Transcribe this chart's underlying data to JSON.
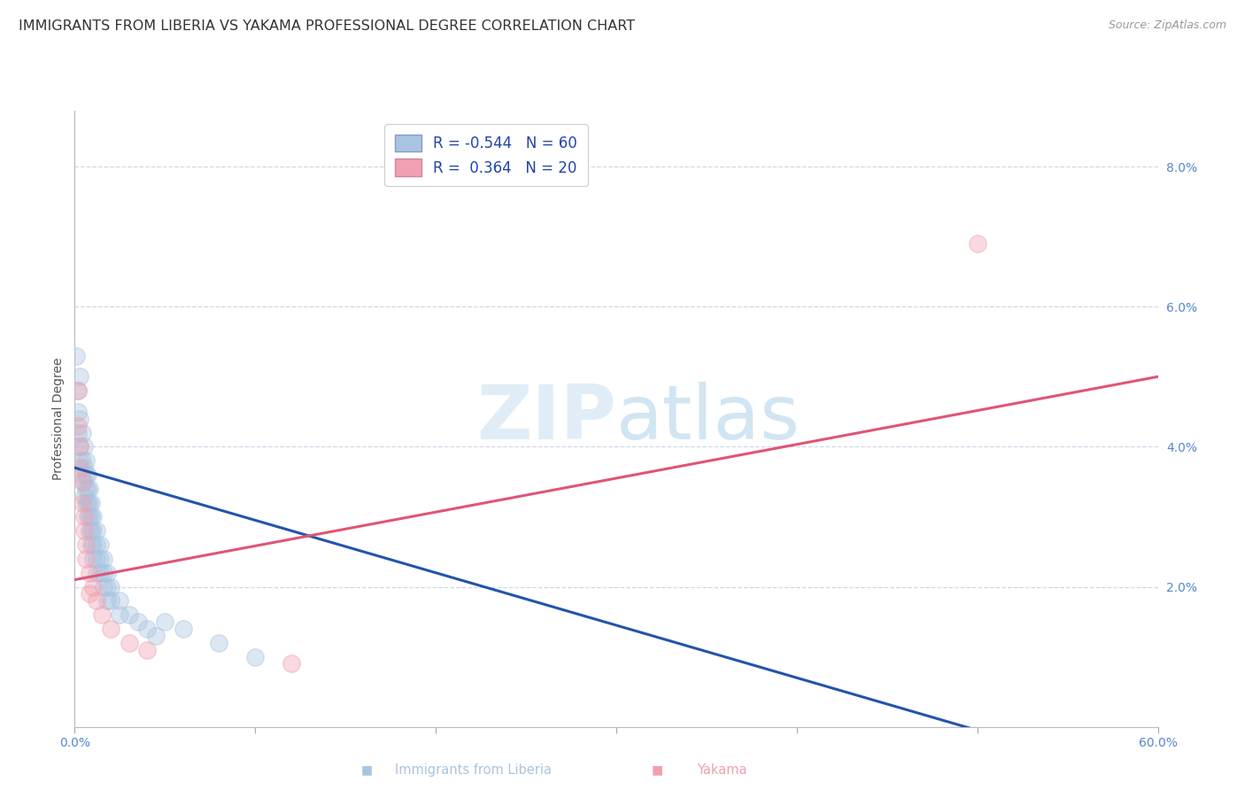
{
  "title": "IMMIGRANTS FROM LIBERIA VS YAKAMA PROFESSIONAL DEGREE CORRELATION CHART",
  "source": "Source: ZipAtlas.com",
  "xlabel_blue": "Immigrants from Liberia",
  "xlabel_pink": "Yakama",
  "ylabel": "Professional Degree",
  "xlim": [
    0.0,
    0.6
  ],
  "ylim": [
    0.0,
    0.088
  ],
  "xticks": [
    0.0,
    0.1,
    0.2,
    0.3,
    0.4,
    0.5,
    0.6
  ],
  "xticklabels": [
    "0.0%",
    "",
    "",
    "",
    "",
    "",
    "60.0%"
  ],
  "yticks": [
    0.0,
    0.02,
    0.04,
    0.06,
    0.08
  ],
  "yticklabels": [
    "",
    "2.0%",
    "4.0%",
    "6.0%",
    "8.0%"
  ],
  "legend_blue_r": "-0.544",
  "legend_blue_n": "60",
  "legend_pink_r": "0.364",
  "legend_pink_n": "20",
  "blue_color": "#a8c4e0",
  "pink_color": "#f0a0b0",
  "blue_line_color": "#2255aa",
  "pink_line_color": "#e05575",
  "blue_scatter": [
    [
      0.001,
      0.053
    ],
    [
      0.002,
      0.048
    ],
    [
      0.002,
      0.045
    ],
    [
      0.002,
      0.042
    ],
    [
      0.003,
      0.05
    ],
    [
      0.003,
      0.044
    ],
    [
      0.003,
      0.04
    ],
    [
      0.003,
      0.038
    ],
    [
      0.004,
      0.042
    ],
    [
      0.004,
      0.038
    ],
    [
      0.004,
      0.036
    ],
    [
      0.005,
      0.04
    ],
    [
      0.005,
      0.037
    ],
    [
      0.005,
      0.035
    ],
    [
      0.005,
      0.033
    ],
    [
      0.006,
      0.038
    ],
    [
      0.006,
      0.036
    ],
    [
      0.006,
      0.034
    ],
    [
      0.006,
      0.032
    ],
    [
      0.007,
      0.036
    ],
    [
      0.007,
      0.034
    ],
    [
      0.007,
      0.032
    ],
    [
      0.007,
      0.03
    ],
    [
      0.008,
      0.034
    ],
    [
      0.008,
      0.032
    ],
    [
      0.008,
      0.03
    ],
    [
      0.008,
      0.028
    ],
    [
      0.009,
      0.032
    ],
    [
      0.009,
      0.03
    ],
    [
      0.009,
      0.028
    ],
    [
      0.009,
      0.026
    ],
    [
      0.01,
      0.03
    ],
    [
      0.01,
      0.028
    ],
    [
      0.01,
      0.026
    ],
    [
      0.01,
      0.024
    ],
    [
      0.012,
      0.028
    ],
    [
      0.012,
      0.026
    ],
    [
      0.012,
      0.024
    ],
    [
      0.012,
      0.022
    ],
    [
      0.014,
      0.026
    ],
    [
      0.014,
      0.024
    ],
    [
      0.014,
      0.022
    ],
    [
      0.016,
      0.024
    ],
    [
      0.016,
      0.022
    ],
    [
      0.016,
      0.02
    ],
    [
      0.018,
      0.022
    ],
    [
      0.018,
      0.02
    ],
    [
      0.018,
      0.018
    ],
    [
      0.02,
      0.02
    ],
    [
      0.02,
      0.018
    ],
    [
      0.025,
      0.018
    ],
    [
      0.025,
      0.016
    ],
    [
      0.03,
      0.016
    ],
    [
      0.035,
      0.015
    ],
    [
      0.04,
      0.014
    ],
    [
      0.045,
      0.013
    ],
    [
      0.05,
      0.015
    ],
    [
      0.06,
      0.014
    ],
    [
      0.08,
      0.012
    ],
    [
      0.1,
      0.01
    ]
  ],
  "pink_scatter": [
    [
      0.002,
      0.048
    ],
    [
      0.002,
      0.043
    ],
    [
      0.003,
      0.04
    ],
    [
      0.003,
      0.037
    ],
    [
      0.004,
      0.035
    ],
    [
      0.004,
      0.032
    ],
    [
      0.005,
      0.03
    ],
    [
      0.005,
      0.028
    ],
    [
      0.006,
      0.026
    ],
    [
      0.006,
      0.024
    ],
    [
      0.008,
      0.022
    ],
    [
      0.008,
      0.019
    ],
    [
      0.01,
      0.02
    ],
    [
      0.012,
      0.018
    ],
    [
      0.015,
      0.016
    ],
    [
      0.02,
      0.014
    ],
    [
      0.03,
      0.012
    ],
    [
      0.04,
      0.011
    ],
    [
      0.12,
      0.009
    ],
    [
      0.5,
      0.069
    ]
  ],
  "blue_line_x": [
    0.0,
    0.6
  ],
  "blue_line_y": [
    0.037,
    -0.008
  ],
  "pink_line_x": [
    0.0,
    0.6
  ],
  "pink_line_y": [
    0.021,
    0.05
  ],
  "background_color": "#ffffff",
  "grid_color": "#d0d8e8",
  "tick_color": "#5588cc",
  "title_fontsize": 11.5,
  "axis_fontsize": 10,
  "watermark_zip": "ZIP",
  "watermark_atlas": "atlas",
  "marker_size": 14,
  "marker_alpha": 0.4,
  "marker_linewidth": 1.2
}
